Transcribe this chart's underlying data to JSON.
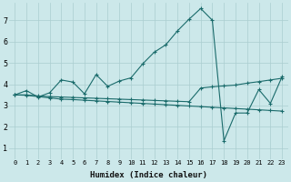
{
  "xlabel": "Humidex (Indice chaleur)",
  "x_ticks": [
    0,
    1,
    2,
    3,
    4,
    5,
    6,
    7,
    8,
    9,
    10,
    11,
    12,
    13,
    14,
    15,
    16,
    17,
    18,
    19,
    20,
    21,
    22,
    23
  ],
  "y_ticks": [
    1,
    2,
    3,
    4,
    5,
    6,
    7
  ],
  "xlim": [
    -0.5,
    23.5
  ],
  "ylim": [
    0.5,
    7.8
  ],
  "background_color": "#cce8ea",
  "grid_color": "#aacdd0",
  "line_color": "#1a6b6b",
  "line1_x": [
    0,
    1,
    2,
    3,
    4,
    5,
    6,
    7,
    8,
    9,
    10,
    11,
    12,
    13,
    14,
    15,
    16,
    17,
    18,
    19,
    20,
    21,
    22,
    23
  ],
  "line1_y": [
    3.5,
    3.7,
    3.4,
    3.6,
    4.2,
    4.1,
    3.55,
    4.45,
    3.9,
    4.15,
    4.3,
    4.95,
    5.5,
    5.85,
    6.5,
    7.05,
    7.55,
    7.0,
    1.35,
    2.65,
    2.65,
    3.75,
    3.1,
    4.35
  ],
  "line2_x": [
    0,
    1,
    2,
    3,
    4,
    5,
    6,
    7,
    8,
    9,
    10,
    11,
    12,
    13,
    14,
    15,
    16,
    17,
    18,
    19,
    20,
    21,
    22,
    23
  ],
  "line2_y": [
    3.5,
    3.5,
    3.45,
    3.42,
    3.4,
    3.38,
    3.36,
    3.34,
    3.32,
    3.3,
    3.28,
    3.26,
    3.24,
    3.22,
    3.2,
    3.18,
    3.82,
    3.88,
    3.92,
    3.96,
    4.05,
    4.12,
    4.2,
    4.28
  ],
  "line3_x": [
    0,
    1,
    2,
    3,
    4,
    5,
    6,
    7,
    8,
    9,
    10,
    11,
    12,
    13,
    14,
    15,
    16,
    17,
    18,
    19,
    20,
    21,
    22,
    23
  ],
  "line3_y": [
    3.5,
    3.48,
    3.42,
    3.36,
    3.3,
    3.28,
    3.25,
    3.22,
    3.19,
    3.16,
    3.13,
    3.1,
    3.07,
    3.04,
    3.01,
    2.98,
    2.95,
    2.92,
    2.89,
    2.86,
    2.83,
    2.8,
    2.77,
    2.74
  ]
}
